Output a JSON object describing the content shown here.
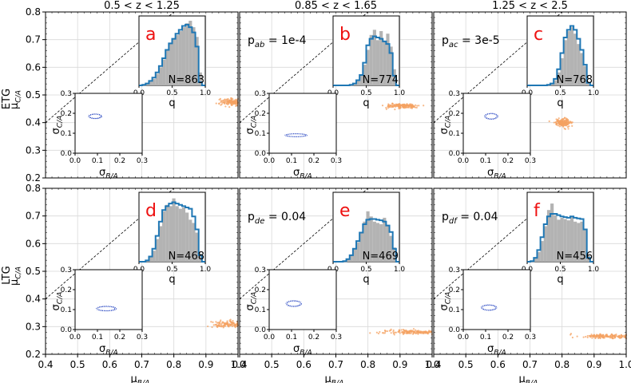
{
  "figure": {
    "column_titles": [
      "0.5 < z < 1.25",
      "0.85 < z < 1.65",
      "1.25 < z < 2.5"
    ],
    "row_labels": [
      "ETG",
      "LTG"
    ],
    "xlabel": "μB/A",
    "ylabel": "μC/A",
    "inset_xlabel": "σB/A",
    "inset_ylabel": "σC/A",
    "hist_xlabel": "q"
  },
  "chart_data": [
    {
      "type": "scatter",
      "panel_label": "a",
      "annotation": "",
      "count_label": "N=863",
      "n": 863,
      "xlim": [
        0.4,
        1.0
      ],
      "ylim": [
        0.2,
        0.8
      ],
      "grid": true,
      "diagonal": {
        "x": [
          0.4,
          0.8
        ],
        "y": [
          0.4,
          0.8
        ],
        "style": "dashed"
      },
      "mu_cloud": {
        "color": "#f4a261",
        "x_center": 0.985,
        "y_center": 0.475,
        "x_spread": 0.02,
        "y_spread": 0.006
      },
      "sigma_inset": {
        "xlim": [
          0.0,
          0.3
        ],
        "ylim": [
          0.0,
          0.3
        ],
        "color": "#1f3fbf",
        "x_center": 0.09,
        "y_center": 0.185,
        "rx": 0.03,
        "ry": 0.012
      },
      "hist": {
        "xlim": [
          0.0,
          1.0
        ],
        "bins": [
          0.0,
          0.05,
          0.1,
          0.15,
          0.2,
          0.25,
          0.3,
          0.35,
          0.4,
          0.45,
          0.5,
          0.55,
          0.6,
          0.65,
          0.7,
          0.75,
          0.8,
          0.85,
          0.9,
          0.95,
          1.0
        ],
        "gray": [
          0,
          0,
          0.02,
          0.06,
          0.1,
          0.18,
          0.28,
          0.4,
          0.55,
          0.65,
          0.72,
          0.78,
          0.84,
          0.9,
          0.96,
          1.0,
          0.9,
          0.75,
          0.2,
          0
        ],
        "model": [
          0,
          0.01,
          0.03,
          0.07,
          0.12,
          0.2,
          0.3,
          0.42,
          0.55,
          0.65,
          0.72,
          0.8,
          0.86,
          0.92,
          0.94,
          0.9,
          0.82,
          0.6,
          0.05,
          0
        ]
      }
    },
    {
      "type": "scatter",
      "panel_label": "b",
      "annotation": "pab = 1e-4",
      "count_label": "N=774",
      "n": 774,
      "xlim": [
        0.4,
        1.0
      ],
      "ylim": [
        0.2,
        0.8
      ],
      "grid": true,
      "diagonal": {
        "x": [
          0.4,
          0.8
        ],
        "y": [
          0.4,
          0.8
        ],
        "style": "dashed"
      },
      "mu_cloud": {
        "color": "#f4a261",
        "x_center": 0.905,
        "y_center": 0.46,
        "x_spread": 0.025,
        "y_spread": 0.004
      },
      "sigma_inset": {
        "xlim": [
          0.0,
          0.3
        ],
        "ylim": [
          0.0,
          0.3
        ],
        "color": "#1f3fbf",
        "x_center": 0.12,
        "y_center": 0.09,
        "rx": 0.05,
        "ry": 0.008
      },
      "hist": {
        "xlim": [
          0.0,
          1.0
        ],
        "bins": [
          0.0,
          0.05,
          0.1,
          0.15,
          0.2,
          0.25,
          0.3,
          0.35,
          0.4,
          0.45,
          0.5,
          0.55,
          0.6,
          0.65,
          0.7,
          0.75,
          0.8,
          0.85,
          0.9,
          0.95,
          1.0
        ],
        "gray": [
          0,
          0,
          0,
          0,
          0,
          0.01,
          0.03,
          0.07,
          0.15,
          0.32,
          0.55,
          0.78,
          0.86,
          0.7,
          0.84,
          0.68,
          0.8,
          0.6,
          0.25,
          0
        ],
        "model": [
          0,
          0,
          0,
          0,
          0,
          0.01,
          0.03,
          0.08,
          0.16,
          0.35,
          0.62,
          0.72,
          0.76,
          0.74,
          0.72,
          0.68,
          0.64,
          0.5,
          0.15,
          0
        ]
      }
    },
    {
      "type": "scatter",
      "panel_label": "c",
      "annotation": "pac = 3e-5",
      "count_label": "N=768",
      "n": 768,
      "xlim": [
        0.4,
        1.0
      ],
      "ylim": [
        0.2,
        0.8
      ],
      "grid": true,
      "diagonal": {
        "x": [
          0.4,
          0.8
        ],
        "y": [
          0.4,
          0.8
        ],
        "style": "dashed"
      },
      "mu_cloud": {
        "color": "#f4a261",
        "x_center": 0.802,
        "y_center": 0.4,
        "x_spread": 0.012,
        "y_spread": 0.007
      },
      "sigma_inset": {
        "xlim": [
          0.0,
          0.3
        ],
        "ylim": [
          0.0,
          0.3
        ],
        "color": "#1f3fbf",
        "x_center": 0.125,
        "y_center": 0.185,
        "rx": 0.03,
        "ry": 0.015
      },
      "hist": {
        "xlim": [
          0.0,
          1.0
        ],
        "bins": [
          0.0,
          0.05,
          0.1,
          0.15,
          0.2,
          0.25,
          0.3,
          0.35,
          0.4,
          0.45,
          0.5,
          0.55,
          0.6,
          0.65,
          0.7,
          0.75,
          0.8,
          0.85,
          0.9,
          0.95,
          1.0
        ],
        "gray": [
          0,
          0,
          0,
          0,
          0,
          0,
          0.01,
          0.03,
          0.08,
          0.2,
          0.42,
          0.7,
          0.84,
          0.9,
          0.8,
          0.64,
          0.5,
          0.3,
          0.05,
          0
        ],
        "model": [
          0,
          0,
          0,
          0,
          0,
          0,
          0.01,
          0.03,
          0.1,
          0.25,
          0.5,
          0.74,
          0.86,
          0.92,
          0.86,
          0.72,
          0.55,
          0.32,
          0.04,
          0
        ]
      }
    },
    {
      "type": "scatter",
      "panel_label": "d",
      "annotation": "",
      "count_label": "N=468",
      "n": 468,
      "xlim": [
        0.4,
        1.0
      ],
      "ylim": [
        0.2,
        0.8
      ],
      "grid": true,
      "diagonal": {
        "x": [
          0.4,
          0.8
        ],
        "y": [
          0.4,
          0.8
        ],
        "style": "dashed"
      },
      "mu_cloud": {
        "color": "#f4a261",
        "x_center": 0.98,
        "y_center": 0.31,
        "x_spread": 0.03,
        "y_spread": 0.006
      },
      "sigma_inset": {
        "xlim": [
          0.0,
          0.3
        ],
        "ylim": [
          0.0,
          0.3
        ],
        "color": "#1f3fbf",
        "x_center": 0.14,
        "y_center": 0.105,
        "rx": 0.045,
        "ry": 0.012
      },
      "hist": {
        "xlim": [
          0.0,
          1.0
        ],
        "bins": [
          0.0,
          0.05,
          0.1,
          0.15,
          0.2,
          0.25,
          0.3,
          0.35,
          0.4,
          0.45,
          0.5,
          0.55,
          0.6,
          0.65,
          0.7,
          0.75,
          0.8,
          0.85,
          0.9,
          0.95,
          1.0
        ],
        "gray": [
          0,
          0,
          0.02,
          0.07,
          0.17,
          0.35,
          0.55,
          0.78,
          0.88,
          0.86,
          0.98,
          0.86,
          0.82,
          0.84,
          0.76,
          0.65,
          0.6,
          0.45,
          0.12,
          0
        ],
        "model": [
          0,
          0,
          0.02,
          0.08,
          0.2,
          0.4,
          0.62,
          0.8,
          0.86,
          0.9,
          0.92,
          0.9,
          0.88,
          0.86,
          0.84,
          0.82,
          0.7,
          0.5,
          0.1,
          0
        ]
      }
    },
    {
      "type": "scatter",
      "panel_label": "e",
      "annotation": "pde = 0.04",
      "count_label": "N=469",
      "n": 469,
      "xlim": [
        0.4,
        1.0
      ],
      "ylim": [
        0.2,
        0.8
      ],
      "grid": true,
      "diagonal": {
        "x": [
          0.4,
          0.8
        ],
        "y": [
          0.4,
          0.8
        ],
        "style": "dashed"
      },
      "mu_cloud": {
        "color": "#f4a261",
        "x_center": 0.94,
        "y_center": 0.28,
        "x_spread": 0.05,
        "y_spread": 0.004
      },
      "sigma_inset": {
        "xlim": [
          0.0,
          0.3
        ],
        "ylim": [
          0.0,
          0.3
        ],
        "color": "#1f3fbf",
        "x_center": 0.11,
        "y_center": 0.13,
        "rx": 0.035,
        "ry": 0.015
      },
      "hist": {
        "xlim": [
          0.0,
          1.0
        ],
        "bins": [
          0.0,
          0.05,
          0.1,
          0.15,
          0.2,
          0.25,
          0.3,
          0.35,
          0.4,
          0.45,
          0.5,
          0.55,
          0.6,
          0.65,
          0.7,
          0.75,
          0.8,
          0.85,
          0.9,
          0.95,
          1.0
        ],
        "gray": [
          0,
          0,
          0,
          0.01,
          0.04,
          0.1,
          0.2,
          0.3,
          0.45,
          0.62,
          0.78,
          0.7,
          0.62,
          0.6,
          0.58,
          0.68,
          0.55,
          0.4,
          0.22,
          0
        ],
        "model": [
          0,
          0,
          0,
          0.01,
          0.04,
          0.1,
          0.2,
          0.32,
          0.45,
          0.58,
          0.65,
          0.66,
          0.66,
          0.65,
          0.64,
          0.62,
          0.56,
          0.46,
          0.2,
          0
        ]
      }
    },
    {
      "type": "scatter",
      "panel_label": "f",
      "annotation": "pdf = 0.04",
      "count_label": "N=456",
      "n": 456,
      "xlim": [
        0.4,
        1.0
      ],
      "ylim": [
        0.2,
        0.8
      ],
      "grid": true,
      "diagonal": {
        "x": [
          0.4,
          0.8
        ],
        "y": [
          0.4,
          0.8
        ],
        "style": "dashed"
      },
      "mu_cloud": {
        "color": "#f4a261",
        "x_center": 0.94,
        "y_center": 0.265,
        "x_spread": 0.04,
        "y_spread": 0.004
      },
      "sigma_inset": {
        "xlim": [
          0.0,
          0.3
        ],
        "ylim": [
          0.0,
          0.3
        ],
        "color": "#1f3fbf",
        "x_center": 0.115,
        "y_center": 0.11,
        "rx": 0.035,
        "ry": 0.014
      },
      "hist": {
        "xlim": [
          0.0,
          1.0
        ],
        "bins": [
          0.0,
          0.05,
          0.1,
          0.15,
          0.2,
          0.25,
          0.3,
          0.35,
          0.4,
          0.45,
          0.5,
          0.55,
          0.6,
          0.65,
          0.7,
          0.75,
          0.8,
          0.85,
          0.9,
          0.95,
          1.0
        ],
        "gray": [
          0,
          0.01,
          0.05,
          0.15,
          0.32,
          0.55,
          0.8,
          0.9,
          0.72,
          0.65,
          0.68,
          0.66,
          0.64,
          0.7,
          0.62,
          0.6,
          0.62,
          0.5,
          0.1,
          0
        ],
        "model": [
          0,
          0.01,
          0.06,
          0.18,
          0.38,
          0.58,
          0.7,
          0.74,
          0.74,
          0.72,
          0.7,
          0.69,
          0.68,
          0.7,
          0.68,
          0.67,
          0.66,
          0.5,
          0.06,
          0
        ]
      }
    }
  ]
}
